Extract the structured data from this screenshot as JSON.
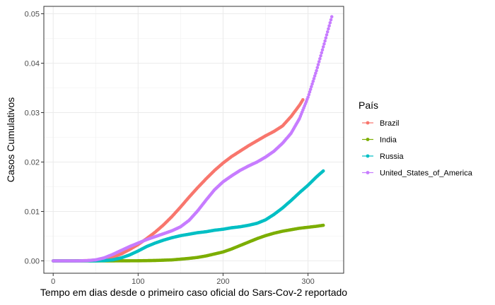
{
  "chart_data": {
    "type": "scatter",
    "xlabel": "Tempo em dias desde o primeiro caso oficial do Sars-Cov-2 reportado",
    "ylabel": "Casos Cumulativos",
    "xlim": [
      -11,
      342
    ],
    "ylim": [
      -0.0025,
      0.0515
    ],
    "x_ticks": [
      0,
      100,
      200,
      300
    ],
    "y_ticks": [
      0,
      0.01,
      0.02,
      0.03,
      0.04,
      0.05
    ],
    "y_tick_labels": [
      "0.00",
      "0.01",
      "0.02",
      "0.03",
      "0.04",
      "0.05"
    ],
    "grid": true,
    "legend": {
      "title": "País",
      "placement": "right"
    },
    "series": [
      {
        "name": "Brazil",
        "color": "#F8766D",
        "x": [
          0,
          20,
          40,
          60,
          70,
          80,
          90,
          100,
          110,
          120,
          130,
          140,
          150,
          160,
          170,
          180,
          190,
          200,
          210,
          220,
          230,
          240,
          250,
          260,
          270,
          280,
          290,
          294
        ],
        "y": [
          0,
          0,
          5e-05,
          0.0003,
          0.0007,
          0.0014,
          0.0023,
          0.0033,
          0.0045,
          0.0058,
          0.0073,
          0.009,
          0.0109,
          0.0129,
          0.0148,
          0.0166,
          0.0183,
          0.0198,
          0.0211,
          0.0222,
          0.0233,
          0.0243,
          0.0253,
          0.0262,
          0.0273,
          0.0292,
          0.0315,
          0.0326
        ]
      },
      {
        "name": "India",
        "color": "#7CAE00",
        "x": [
          0,
          50,
          100,
          120,
          140,
          150,
          160,
          170,
          180,
          190,
          200,
          210,
          220,
          230,
          240,
          250,
          260,
          270,
          280,
          290,
          300,
          310,
          318
        ],
        "y": [
          0,
          0,
          2e-05,
          8e-05,
          0.0002,
          0.00035,
          0.0005,
          0.0007,
          0.001,
          0.0014,
          0.0018,
          0.0024,
          0.0031,
          0.0038,
          0.0045,
          0.0051,
          0.0056,
          0.006,
          0.0063,
          0.0066,
          0.0068,
          0.007,
          0.0072
        ]
      },
      {
        "name": "Russia",
        "color": "#00BFC4",
        "x": [
          0,
          50,
          60,
          70,
          80,
          90,
          100,
          110,
          120,
          130,
          140,
          150,
          160,
          170,
          180,
          190,
          200,
          210,
          220,
          230,
          240,
          250,
          260,
          270,
          280,
          290,
          300,
          310,
          318
        ],
        "y": [
          0,
          0,
          5e-05,
          0.0002,
          0.0006,
          0.0012,
          0.002,
          0.0029,
          0.0036,
          0.0042,
          0.0047,
          0.0051,
          0.0054,
          0.0057,
          0.0059,
          0.0062,
          0.0064,
          0.0067,
          0.0069,
          0.0072,
          0.0076,
          0.0083,
          0.0094,
          0.0107,
          0.0122,
          0.0138,
          0.0153,
          0.017,
          0.0182
        ]
      },
      {
        "name": "United_States_of_America",
        "color": "#C77CFF",
        "x": [
          0,
          30,
          40,
          50,
          60,
          70,
          80,
          90,
          100,
          110,
          120,
          130,
          140,
          150,
          160,
          170,
          180,
          190,
          200,
          210,
          220,
          230,
          240,
          250,
          260,
          270,
          280,
          290,
          300,
          310,
          320,
          328
        ],
        "y": [
          0,
          0,
          5e-05,
          0.0002,
          0.0006,
          0.0013,
          0.0021,
          0.0029,
          0.0036,
          0.0043,
          0.0049,
          0.0055,
          0.0061,
          0.0069,
          0.0082,
          0.0101,
          0.0123,
          0.0144,
          0.016,
          0.0172,
          0.0183,
          0.0192,
          0.02,
          0.021,
          0.0222,
          0.0238,
          0.0258,
          0.0288,
          0.0331,
          0.0385,
          0.0445,
          0.0494
        ]
      }
    ]
  }
}
